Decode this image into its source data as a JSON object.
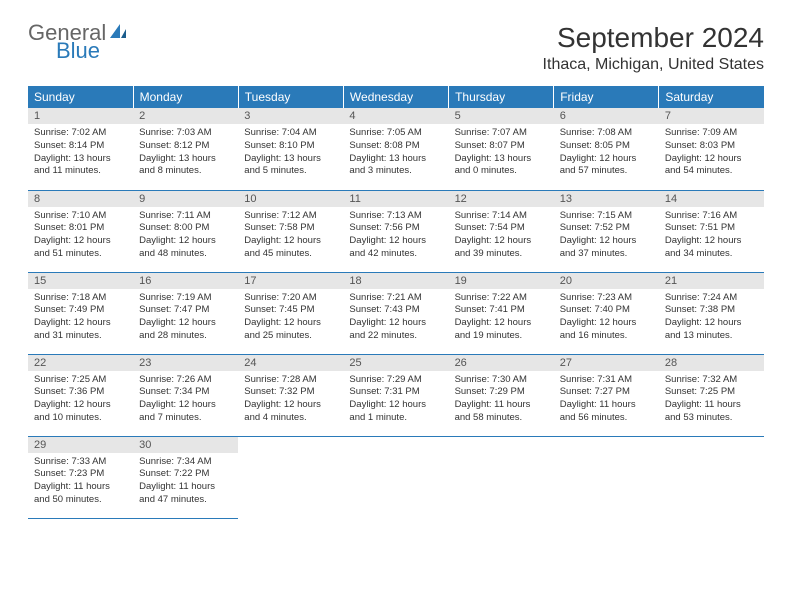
{
  "logo": {
    "general": "General",
    "blue": "Blue"
  },
  "title": "September 2024",
  "location": "Ithaca, Michigan, United States",
  "colors": {
    "header_bg": "#2a7ab9",
    "header_text": "#ffffff",
    "daybar_bg": "#e6e6e6",
    "daybar_text": "#555555",
    "border": "#2a7ab9",
    "body_text": "#333333",
    "logo_blue": "#2a7ab9",
    "logo_gray": "#666666"
  },
  "dayNames": [
    "Sunday",
    "Monday",
    "Tuesday",
    "Wednesday",
    "Thursday",
    "Friday",
    "Saturday"
  ],
  "weeks": [
    [
      {
        "n": "1",
        "sunrise": "Sunrise: 7:02 AM",
        "sunset": "Sunset: 8:14 PM",
        "daylight": "Daylight: 13 hours and 11 minutes."
      },
      {
        "n": "2",
        "sunrise": "Sunrise: 7:03 AM",
        "sunset": "Sunset: 8:12 PM",
        "daylight": "Daylight: 13 hours and 8 minutes."
      },
      {
        "n": "3",
        "sunrise": "Sunrise: 7:04 AM",
        "sunset": "Sunset: 8:10 PM",
        "daylight": "Daylight: 13 hours and 5 minutes."
      },
      {
        "n": "4",
        "sunrise": "Sunrise: 7:05 AM",
        "sunset": "Sunset: 8:08 PM",
        "daylight": "Daylight: 13 hours and 3 minutes."
      },
      {
        "n": "5",
        "sunrise": "Sunrise: 7:07 AM",
        "sunset": "Sunset: 8:07 PM",
        "daylight": "Daylight: 13 hours and 0 minutes."
      },
      {
        "n": "6",
        "sunrise": "Sunrise: 7:08 AM",
        "sunset": "Sunset: 8:05 PM",
        "daylight": "Daylight: 12 hours and 57 minutes."
      },
      {
        "n": "7",
        "sunrise": "Sunrise: 7:09 AM",
        "sunset": "Sunset: 8:03 PM",
        "daylight": "Daylight: 12 hours and 54 minutes."
      }
    ],
    [
      {
        "n": "8",
        "sunrise": "Sunrise: 7:10 AM",
        "sunset": "Sunset: 8:01 PM",
        "daylight": "Daylight: 12 hours and 51 minutes."
      },
      {
        "n": "9",
        "sunrise": "Sunrise: 7:11 AM",
        "sunset": "Sunset: 8:00 PM",
        "daylight": "Daylight: 12 hours and 48 minutes."
      },
      {
        "n": "10",
        "sunrise": "Sunrise: 7:12 AM",
        "sunset": "Sunset: 7:58 PM",
        "daylight": "Daylight: 12 hours and 45 minutes."
      },
      {
        "n": "11",
        "sunrise": "Sunrise: 7:13 AM",
        "sunset": "Sunset: 7:56 PM",
        "daylight": "Daylight: 12 hours and 42 minutes."
      },
      {
        "n": "12",
        "sunrise": "Sunrise: 7:14 AM",
        "sunset": "Sunset: 7:54 PM",
        "daylight": "Daylight: 12 hours and 39 minutes."
      },
      {
        "n": "13",
        "sunrise": "Sunrise: 7:15 AM",
        "sunset": "Sunset: 7:52 PM",
        "daylight": "Daylight: 12 hours and 37 minutes."
      },
      {
        "n": "14",
        "sunrise": "Sunrise: 7:16 AM",
        "sunset": "Sunset: 7:51 PM",
        "daylight": "Daylight: 12 hours and 34 minutes."
      }
    ],
    [
      {
        "n": "15",
        "sunrise": "Sunrise: 7:18 AM",
        "sunset": "Sunset: 7:49 PM",
        "daylight": "Daylight: 12 hours and 31 minutes."
      },
      {
        "n": "16",
        "sunrise": "Sunrise: 7:19 AM",
        "sunset": "Sunset: 7:47 PM",
        "daylight": "Daylight: 12 hours and 28 minutes."
      },
      {
        "n": "17",
        "sunrise": "Sunrise: 7:20 AM",
        "sunset": "Sunset: 7:45 PM",
        "daylight": "Daylight: 12 hours and 25 minutes."
      },
      {
        "n": "18",
        "sunrise": "Sunrise: 7:21 AM",
        "sunset": "Sunset: 7:43 PM",
        "daylight": "Daylight: 12 hours and 22 minutes."
      },
      {
        "n": "19",
        "sunrise": "Sunrise: 7:22 AM",
        "sunset": "Sunset: 7:41 PM",
        "daylight": "Daylight: 12 hours and 19 minutes."
      },
      {
        "n": "20",
        "sunrise": "Sunrise: 7:23 AM",
        "sunset": "Sunset: 7:40 PM",
        "daylight": "Daylight: 12 hours and 16 minutes."
      },
      {
        "n": "21",
        "sunrise": "Sunrise: 7:24 AM",
        "sunset": "Sunset: 7:38 PM",
        "daylight": "Daylight: 12 hours and 13 minutes."
      }
    ],
    [
      {
        "n": "22",
        "sunrise": "Sunrise: 7:25 AM",
        "sunset": "Sunset: 7:36 PM",
        "daylight": "Daylight: 12 hours and 10 minutes."
      },
      {
        "n": "23",
        "sunrise": "Sunrise: 7:26 AM",
        "sunset": "Sunset: 7:34 PM",
        "daylight": "Daylight: 12 hours and 7 minutes."
      },
      {
        "n": "24",
        "sunrise": "Sunrise: 7:28 AM",
        "sunset": "Sunset: 7:32 PM",
        "daylight": "Daylight: 12 hours and 4 minutes."
      },
      {
        "n": "25",
        "sunrise": "Sunrise: 7:29 AM",
        "sunset": "Sunset: 7:31 PM",
        "daylight": "Daylight: 12 hours and 1 minute."
      },
      {
        "n": "26",
        "sunrise": "Sunrise: 7:30 AM",
        "sunset": "Sunset: 7:29 PM",
        "daylight": "Daylight: 11 hours and 58 minutes."
      },
      {
        "n": "27",
        "sunrise": "Sunrise: 7:31 AM",
        "sunset": "Sunset: 7:27 PM",
        "daylight": "Daylight: 11 hours and 56 minutes."
      },
      {
        "n": "28",
        "sunrise": "Sunrise: 7:32 AM",
        "sunset": "Sunset: 7:25 PM",
        "daylight": "Daylight: 11 hours and 53 minutes."
      }
    ],
    [
      {
        "n": "29",
        "sunrise": "Sunrise: 7:33 AM",
        "sunset": "Sunset: 7:23 PM",
        "daylight": "Daylight: 11 hours and 50 minutes."
      },
      {
        "n": "30",
        "sunrise": "Sunrise: 7:34 AM",
        "sunset": "Sunset: 7:22 PM",
        "daylight": "Daylight: 11 hours and 47 minutes."
      },
      null,
      null,
      null,
      null,
      null
    ]
  ]
}
